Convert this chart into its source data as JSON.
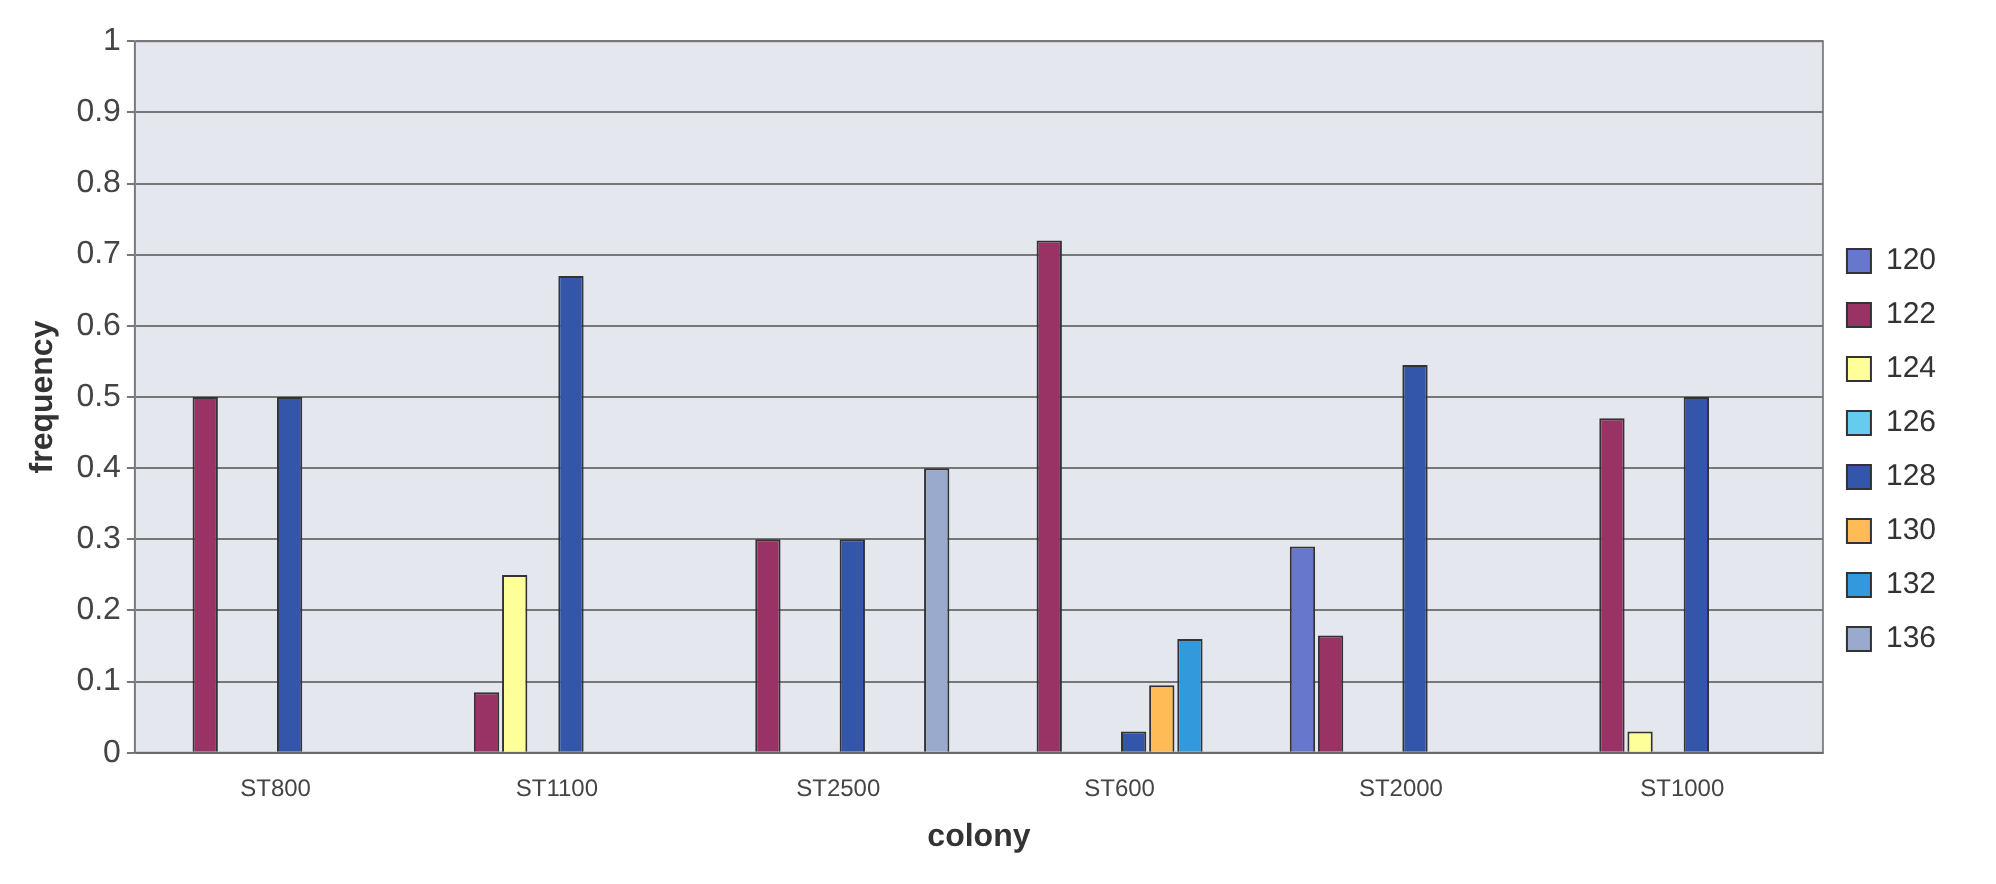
{
  "chart_data": {
    "type": "bar",
    "xlabel": "colony",
    "ylabel": "frequency",
    "categories": [
      "ST800",
      "ST1100",
      "ST2500",
      "ST600",
      "ST2000",
      "ST1000"
    ],
    "series": [
      {
        "name": "120",
        "color": "#6677cc",
        "values": [
          null,
          null,
          null,
          null,
          0.29,
          null
        ]
      },
      {
        "name": "122",
        "color": "#993366",
        "values": [
          0.5,
          0.085,
          0.3,
          0.72,
          0.165,
          0.47
        ]
      },
      {
        "name": "124",
        "color": "#ffff99",
        "values": [
          null,
          0.25,
          null,
          null,
          null,
          0.03
        ]
      },
      {
        "name": "126",
        "color": "#66ccee",
        "values": [
          null,
          null,
          null,
          null,
          null,
          null
        ]
      },
      {
        "name": "128",
        "color": "#3355aa",
        "values": [
          0.5,
          0.67,
          0.3,
          0.03,
          0.545,
          0.5
        ]
      },
      {
        "name": "130",
        "color": "#ffbb55",
        "values": [
          null,
          null,
          null,
          0.095,
          null,
          null
        ]
      },
      {
        "name": "132",
        "color": "#3399dd",
        "values": [
          null,
          null,
          null,
          0.16,
          null,
          null
        ]
      },
      {
        "name": "136",
        "color": "#99aacc",
        "values": [
          null,
          null,
          0.4,
          null,
          null,
          null
        ]
      }
    ],
    "ylim": [
      0,
      1
    ],
    "yticks": [
      0,
      0.1,
      0.2,
      0.3,
      0.4,
      0.5,
      0.6,
      0.7,
      0.8,
      0.9,
      1
    ],
    "grid": "y",
    "legend": "right"
  }
}
